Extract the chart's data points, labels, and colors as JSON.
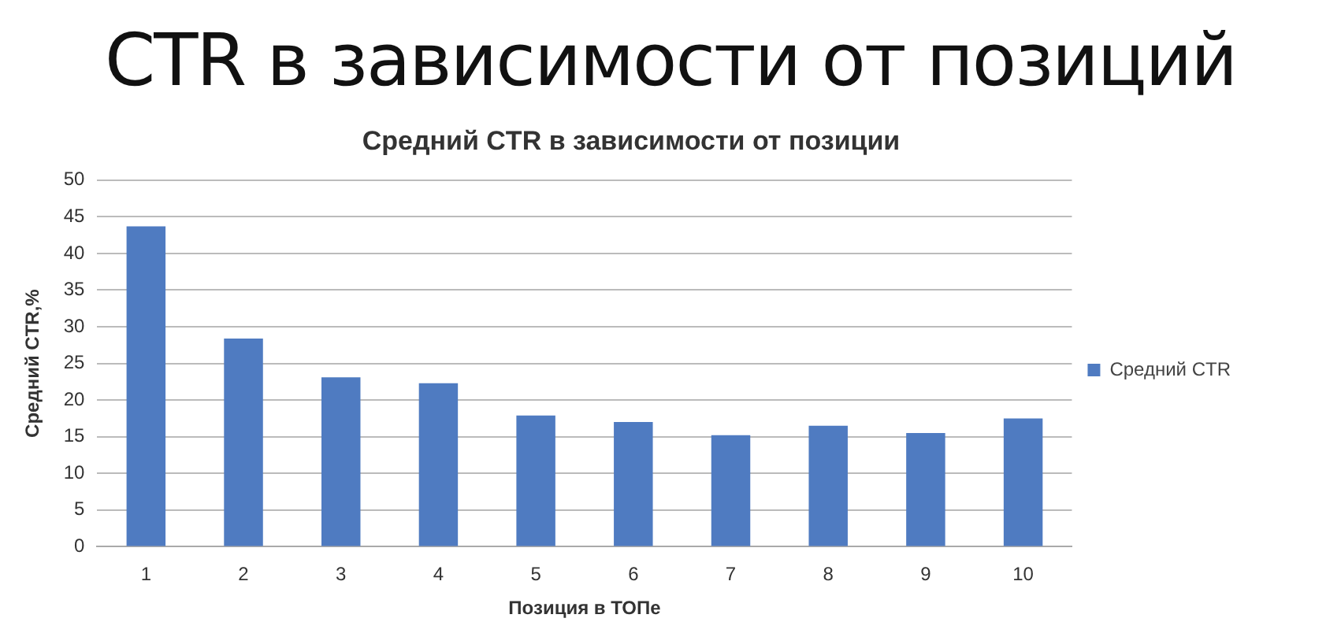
{
  "chart_data": {
    "type": "bar",
    "title": "CTR в зависимости от позиций",
    "subtitle": "Средний CTR в зависимости от позиции",
    "xlabel": "Позиция в ТОПе",
    "ylabel": "Средний CTR,%",
    "categories": [
      "1",
      "2",
      "3",
      "4",
      "5",
      "6",
      "7",
      "8",
      "9",
      "10"
    ],
    "series": [
      {
        "name": "Средний CTR",
        "color": "#4f7bc1",
        "values": [
          43.7,
          28.4,
          23.1,
          22.3,
          17.9,
          17.0,
          15.2,
          16.5,
          15.5,
          17.5
        ]
      }
    ],
    "ylim": [
      0,
      50
    ],
    "yticks": [
      0,
      5,
      10,
      15,
      20,
      25,
      30,
      35,
      40,
      45,
      50
    ],
    "grid": "y",
    "legend": "right"
  }
}
